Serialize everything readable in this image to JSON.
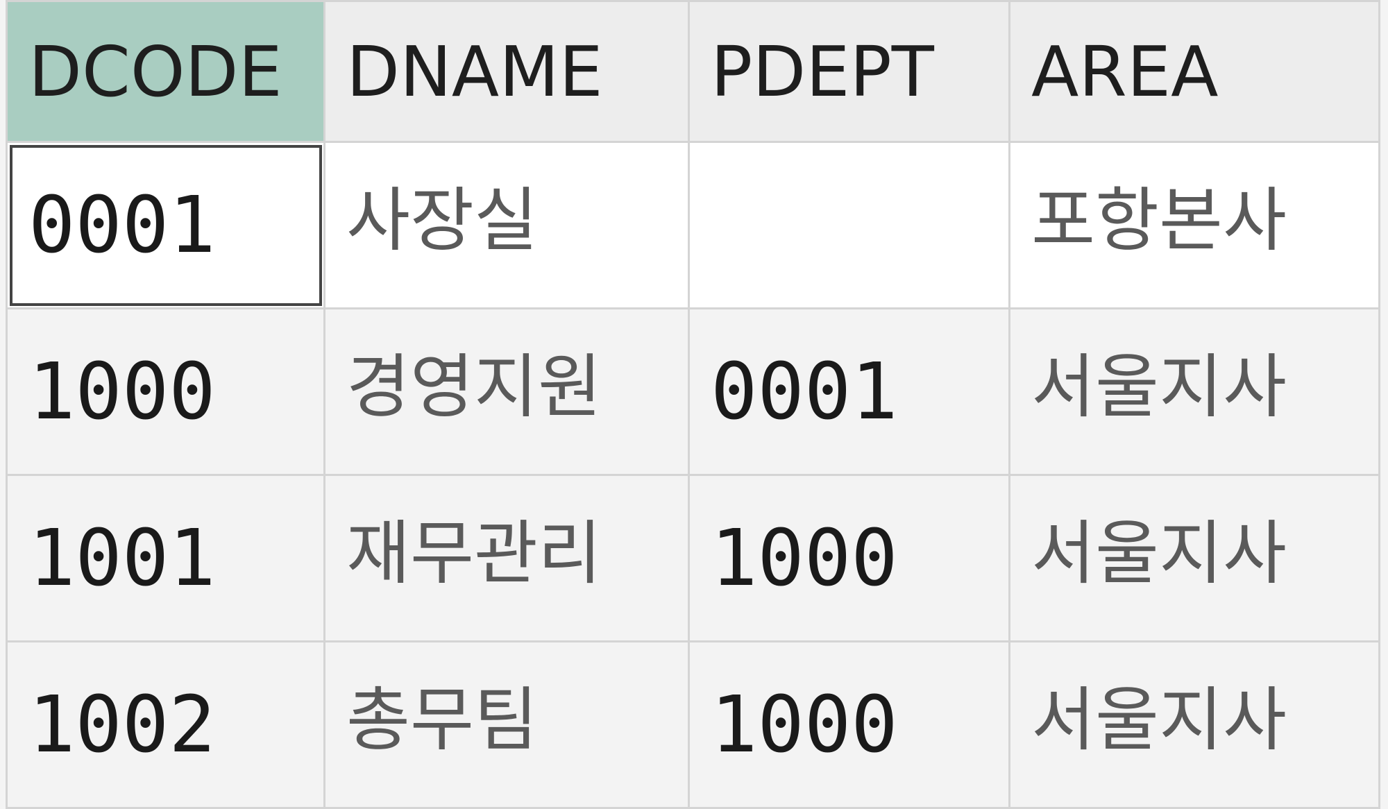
{
  "table": {
    "columns": [
      "DCODE",
      "DNAME",
      "PDEPT",
      "AREA"
    ],
    "selected_column": "DCODE",
    "rows": [
      {
        "DCODE": "0001",
        "DNAME": "사장실",
        "PDEPT": "",
        "AREA": "포항본사"
      },
      {
        "DCODE": "1000",
        "DNAME": "경영지원",
        "PDEPT": "0001",
        "AREA": "서울지사"
      },
      {
        "DCODE": "1001",
        "DNAME": "재무관리",
        "PDEPT": "1000",
        "AREA": "서울지사"
      },
      {
        "DCODE": "1002",
        "DNAME": "총무팀",
        "PDEPT": "1000",
        "AREA": "서울지사"
      }
    ]
  },
  "colors": {
    "selected_header": "#a9cdc1",
    "header": "#ededed"
  }
}
